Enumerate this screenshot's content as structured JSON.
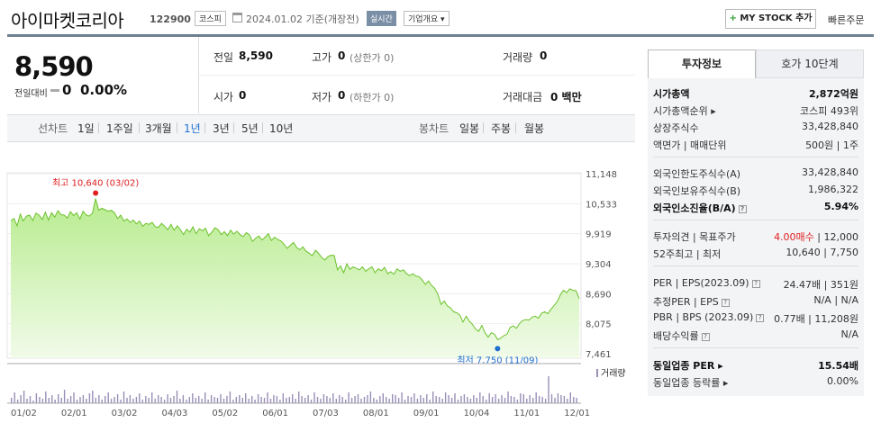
{
  "header": {
    "stock_name": "아이마켓코리아",
    "stock_code": "122900",
    "market": "코스피",
    "date_text": "2024.01.02 기준(개장전)",
    "realtime": "실시간",
    "company_overview": "기업개요 ▾",
    "mystock_label": "MY STOCK 추가",
    "mystock_plus": "+",
    "quick_order": "빠른주문"
  },
  "price": {
    "current": "8,590",
    "change_label": "전일대비",
    "change_value": "0",
    "change_pct": "0.00%"
  },
  "stats": {
    "prev_label": "전일",
    "prev_value": "8,590",
    "high_label": "고가",
    "high_value": "0",
    "high_note": "(상한가 0)",
    "volume_label": "거래량",
    "volume_value": "0",
    "open_label": "시가",
    "open_value": "0",
    "low_label": "저가",
    "low_value": "0",
    "low_note": "(하한가 0)",
    "amount_label": "거래대금",
    "amount_value": "0 백만"
  },
  "period_bar": {
    "line_chart_label": "선차트",
    "periods": [
      "1일",
      "1주일",
      "3개월",
      "1년",
      "3년",
      "5년",
      "10년"
    ],
    "active_period": "1년",
    "candle_chart_label": "봉차트",
    "candles": [
      "일봉",
      "주봉",
      "월봉"
    ]
  },
  "chart_data": {
    "type": "area",
    "y_ticks": [
      "11,148",
      "10,533",
      "9,919",
      "9,304",
      "8,690",
      "8,075",
      "7,461"
    ],
    "ylim": [
      7461,
      11148
    ],
    "x_ticks": [
      "01/02",
      "02/01",
      "03/02",
      "04/03",
      "05/02",
      "06/01",
      "07/03",
      "08/01",
      "09/01",
      "10/04",
      "11/01",
      "12/01"
    ],
    "high_annotation": "최고 10,640 (03/02)",
    "low_annotation": "최저 7,750 (11/09)",
    "volume_legend": "거래량",
    "colors": {
      "line": "#6cc12c",
      "fill_top": "#b8ec8f",
      "fill_bottom": "#f1fbe9",
      "volume": "#9a8fb7",
      "high": "#e02020",
      "low": "#1f6fd0"
    },
    "series": [
      {
        "values": [
          10180,
          10230,
          10080,
          10320,
          10180,
          10280,
          10300,
          10190,
          10340,
          10300,
          10210,
          10360,
          10200,
          10350,
          10260,
          10390,
          10310,
          10300,
          10240,
          10370,
          10290,
          10350,
          10220,
          10380,
          10300,
          10280,
          10340,
          10640,
          10400,
          10440,
          10410,
          10380,
          10400,
          10350,
          10230,
          10300,
          10180,
          10220,
          10150,
          10200,
          10120,
          10180,
          10070,
          10130,
          10110,
          10150,
          10060,
          10050,
          10130,
          10070,
          10000,
          10110,
          9990,
          10080,
          10000,
          9900,
          10010,
          9950,
          10060,
          9920,
          10020,
          9980,
          10030,
          9880,
          9950,
          10040,
          10000,
          9900,
          9960,
          9880,
          9990,
          9910,
          9970,
          9900,
          9860,
          9940,
          9890,
          9760,
          9830,
          9870,
          9790,
          9850,
          9920,
          9780,
          9850,
          9800,
          9770,
          9700,
          9620,
          9680,
          9740,
          9640,
          9590,
          9650,
          9560,
          9520,
          9470,
          9580,
          9520,
          9430,
          9380,
          9450,
          9480,
          9470,
          9180,
          9260,
          9120,
          9300,
          9190,
          9240,
          9210,
          9180,
          9240,
          9150,
          9200,
          9240,
          9120,
          9200,
          9160,
          9230,
          9100,
          9140,
          9090,
          9200,
          9150,
          9180,
          9100,
          9060,
          9100,
          9050,
          9040,
          8970,
          8880,
          8950,
          8860,
          8800,
          8680,
          8470,
          8540,
          8440,
          8400,
          8320,
          8300,
          8250,
          8110,
          8230,
          8130,
          8060,
          7960,
          7920,
          8040,
          7890,
          7800,
          7890,
          7860,
          7750,
          7780,
          7830,
          7860,
          8000,
          8030,
          7980,
          8080,
          8140,
          8160,
          8150,
          8210,
          8230,
          8190,
          8290,
          8320,
          8280,
          8370,
          8450,
          8530,
          8670,
          8760,
          8710,
          8790,
          8760,
          8750,
          8590
        ]
      }
    ]
  },
  "right_panel": {
    "tab_invest": "투자정보",
    "tab_hoga": "호가 10단계",
    "rows": [
      {
        "label": "시가총액",
        "value": "2,872억원",
        "bold": true
      },
      {
        "label": "시가총액순위 ▸",
        "value": "코스피 493위"
      },
      {
        "label": "상장주식수",
        "value": "33,428,840"
      },
      {
        "label": "액면가 | 매매단위",
        "value": "500원 | 1주"
      },
      {
        "label": "외국인한도주식수(A)",
        "value": "33,428,840"
      },
      {
        "label": "외국인보유주식수(B)",
        "value": "1,986,322"
      },
      {
        "label": "외국인소진율(B/A)",
        "value": "5.94%",
        "bold": true,
        "q": true
      },
      {
        "label": "투자의견 | 목표주가",
        "value_red": "4.00매수",
        "value": " | 12,000"
      },
      {
        "label": "52주최고 | 최저",
        "value": "10,640 | 7,750"
      },
      {
        "label": "PER | EPS(2023.09)",
        "value": "24.47배 | 351원",
        "q": true
      },
      {
        "label": "추정PER | EPS",
        "value": "N/A | N/A",
        "q": true
      },
      {
        "label": "PBR | BPS (2023.09)",
        "value": "0.77배 | 11,208원",
        "q": true
      },
      {
        "label": "배당수익률",
        "value": "N/A",
        "q": true
      },
      {
        "label": "동일업종 PER ▸",
        "value": "15.54배",
        "bold": true
      },
      {
        "label": "동일업종 등락률 ▸",
        "value": "0.00%"
      }
    ]
  }
}
